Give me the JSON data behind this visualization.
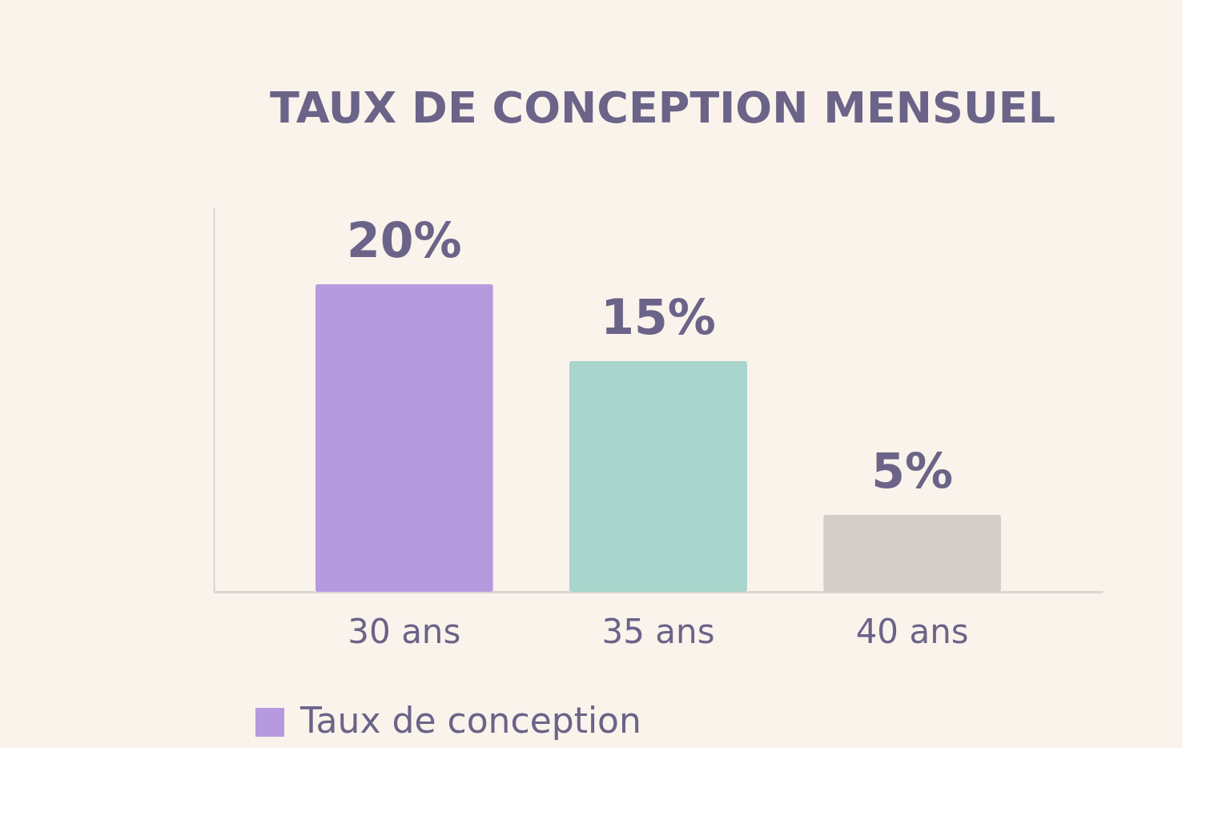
{
  "chart_data": {
    "type": "bar",
    "title": "TAUX DE CONCEPTION MENSUEL",
    "categories": [
      "30 ans",
      "35 ans",
      "40 ans"
    ],
    "series": [
      {
        "name": "Taux de conception",
        "color": "#b59ae0",
        "colors": [
          "#b59ae0",
          "#a8d5cc",
          "#d5cdca"
        ],
        "values": [
          20,
          15,
          5
        ],
        "value_labels": [
          "20%",
          "15%",
          "5%"
        ]
      }
    ],
    "legend": "bottom left",
    "grid": false,
    "tick_labels": "x"
  }
}
